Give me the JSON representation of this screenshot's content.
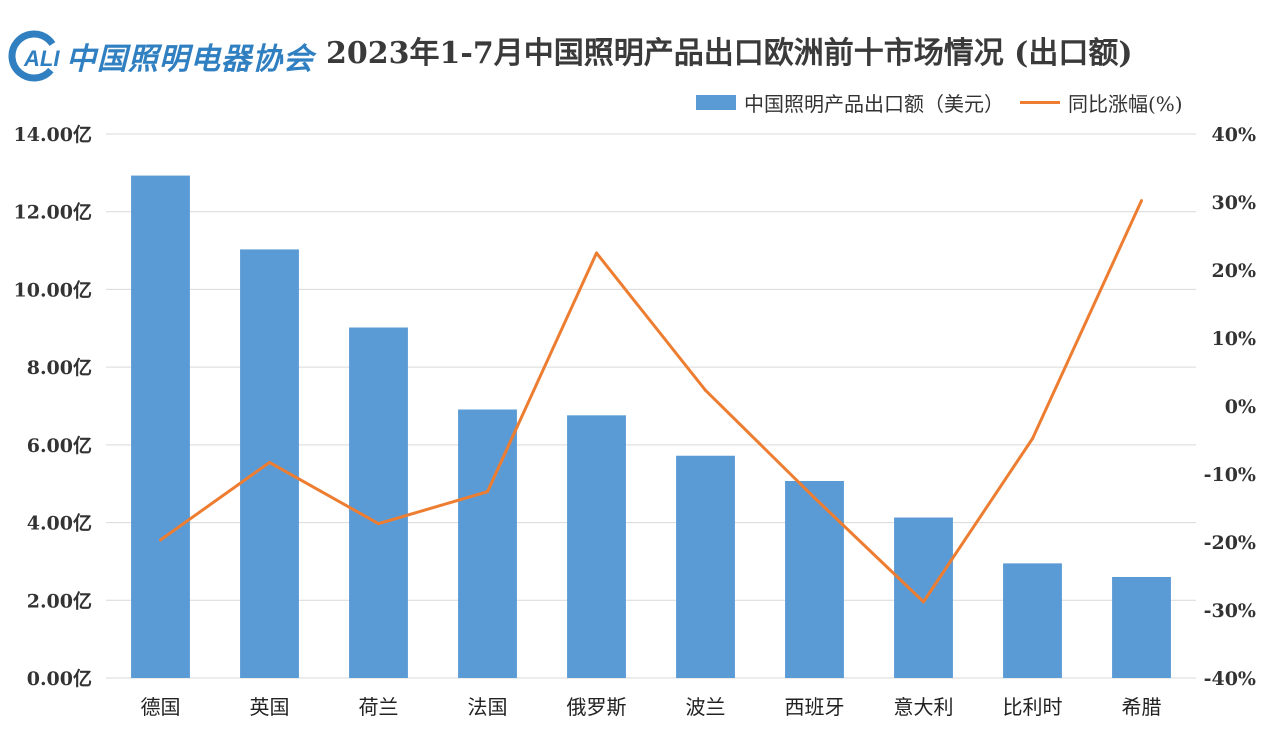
{
  "logo": {
    "mark_text": "ALI",
    "name": "中国照明电器协会"
  },
  "colors": {
    "bar": "#5b9bd5",
    "line": "#ed7d31",
    "grid": "#d9d9d9",
    "logo": "#2f7fc1"
  },
  "chart_data": {
    "type": "bar",
    "title": "2023年1-7月中国照明产品出口欧洲前十市场情况 (出口额)",
    "legend_placement": "top-right",
    "grid": true,
    "categories": [
      "德国",
      "英国",
      "荷兰",
      "法国",
      "俄罗斯",
      "波兰",
      "西班牙",
      "意大利",
      "比利时",
      "希腊"
    ],
    "series": [
      {
        "name": "中国照明产品出口额（美元）",
        "type": "bar",
        "axis": "left",
        "unit": "亿",
        "values": [
          12.93,
          11.03,
          9.02,
          6.91,
          6.76,
          5.72,
          5.07,
          4.13,
          2.95,
          2.6
        ]
      },
      {
        "name": "同比涨幅(%)",
        "type": "line",
        "axis": "right",
        "unit": "%",
        "values": [
          -19.7,
          -8.3,
          -17.3,
          -12.6,
          22.5,
          2.3,
          -13.5,
          -28.8,
          -4.8,
          30.2
        ]
      }
    ],
    "y_left": {
      "range": [
        0,
        14
      ],
      "ticks": [
        0,
        2,
        4,
        6,
        8,
        10,
        12,
        14
      ],
      "tick_labels": [
        "0.00亿",
        "2.00亿",
        "4.00亿",
        "6.00亿",
        "8.00亿",
        "10.00亿",
        "12.00亿",
        "14.00亿"
      ]
    },
    "y_right": {
      "range": [
        -40,
        40
      ],
      "ticks": [
        -40,
        -30,
        -20,
        -10,
        0,
        10,
        20,
        30,
        40
      ],
      "tick_labels": [
        "-40%",
        "-30%",
        "-20%",
        "-10%",
        "0%",
        "10%",
        "20%",
        "30%",
        "40%"
      ]
    }
  }
}
